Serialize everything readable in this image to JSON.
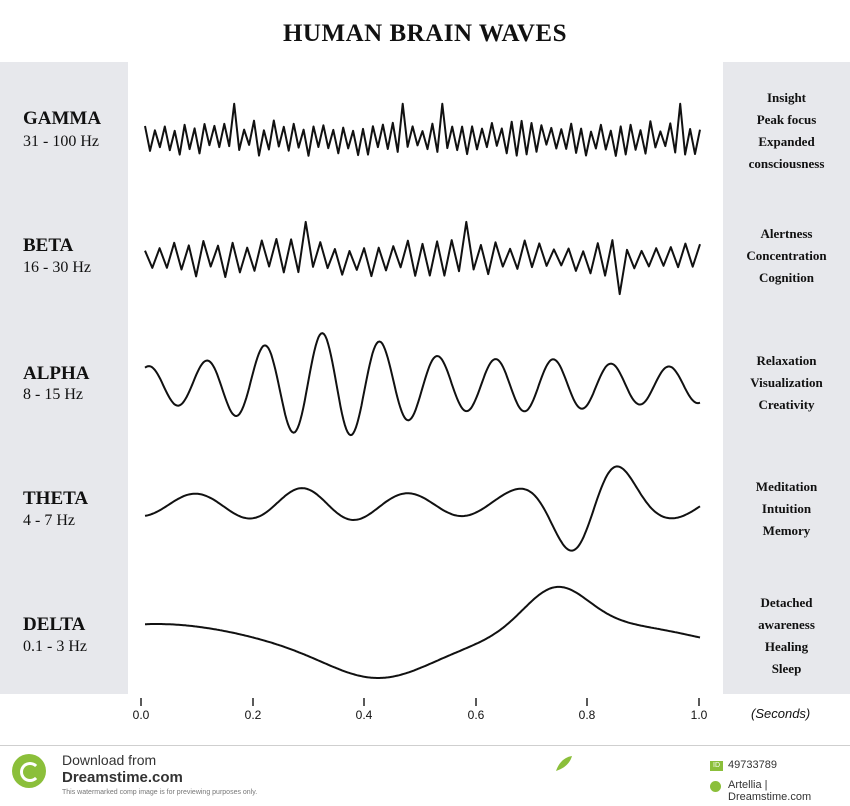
{
  "title": "HUMAN BRAIN WAVES",
  "waves": [
    {
      "name": "GAMMA",
      "freq": "31 - 100 Hz",
      "states": [
        "Insight",
        "Peak focus",
        "Expanded",
        "consciousness"
      ]
    },
    {
      "name": "BETA",
      "freq": "16 - 30 Hz",
      "states": [
        "Alertness",
        "Concentration",
        "Cognition"
      ]
    },
    {
      "name": "ALPHA",
      "freq": "8 - 15 Hz",
      "states": [
        "Relaxation",
        "Visualization",
        "Creativity"
      ]
    },
    {
      "name": "THETA",
      "freq": "4 - 7 Hz",
      "states": [
        "Meditation",
        "Intuition",
        "Memory"
      ]
    },
    {
      "name": "DELTA",
      "freq": "0.1 - 3 Hz",
      "states": [
        "Detached",
        "awareness",
        "Healing",
        "Sleep"
      ]
    }
  ],
  "axis": {
    "ticks": [
      "0.0",
      "0.2",
      "0.4",
      "0.6",
      "0.8",
      "1.0"
    ],
    "unit_label": "(Seconds)"
  },
  "footer": {
    "download": "Download from",
    "brand": "Dreamstime.com",
    "notice": "This watermarked comp image is for previewing purposes only.",
    "id_badge": "ID",
    "image_id": "49733789",
    "credit": "Artellia | Dreamstime.com"
  },
  "colors": {
    "panel": "#e7e8ec",
    "wave": "#111111",
    "brand_green": "#8bbf3a"
  }
}
